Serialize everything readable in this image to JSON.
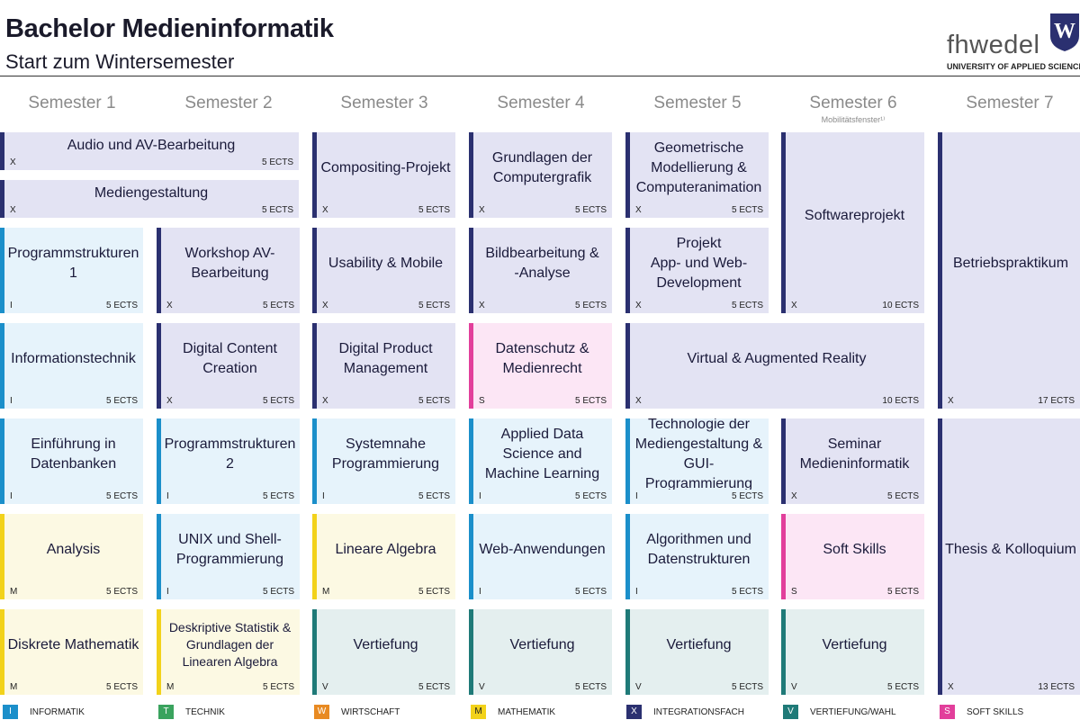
{
  "header": {
    "title": "Bachelor Medieninformatik",
    "subtitle": "Start zum Wintersemester",
    "logo_text": "fhwedel",
    "logo_letter": "W",
    "logo_sub": "UNIVERSITY OF APPLIED SCIENCES"
  },
  "semesters": [
    {
      "label": "Semester 1",
      "note": ""
    },
    {
      "label": "Semester 2",
      "note": ""
    },
    {
      "label": "Semester 3",
      "note": ""
    },
    {
      "label": "Semester 4",
      "note": ""
    },
    {
      "label": "Semester 5",
      "note": ""
    },
    {
      "label": "Semester 6",
      "note": "Mobilitätsfenster¹⁾"
    },
    {
      "label": "Semester 7",
      "note": ""
    }
  ],
  "colors": {
    "I": {
      "bar": "#1b8fca",
      "bg": "#e6f3fb"
    },
    "T": {
      "bar": "#3aa35e",
      "bg": "#e6f4ea"
    },
    "W": {
      "bar": "#e88a22",
      "bg": "#fdf0e2"
    },
    "M": {
      "bar": "#f2d21a",
      "bg": "#fcf9e3"
    },
    "X": {
      "bar": "#2b3070",
      "bg": "#e3e3f3"
    },
    "V": {
      "bar": "#1f7a78",
      "bg": "#e4efef"
    },
    "S": {
      "bar": "#e23f9b",
      "bg": "#fce6f5"
    }
  },
  "modules": [
    {
      "id": "audio-und-av-bearbeitung",
      "col": 0,
      "row": 0,
      "span": 0.5,
      "name": "Audio und AV-Bearbeitung",
      "cat": "X",
      "ects": "5 ECTS"
    },
    {
      "id": "mediengestaltung",
      "col": 0,
      "row": 0.5,
      "span": 0.5,
      "name": "Mediengestaltung",
      "cat": "X",
      "ects": "5 ECTS"
    },
    {
      "id": "programmstrukturen-1",
      "col": 0,
      "row": 1,
      "span": 1,
      "name": "Programmstrukturen\n1",
      "cat": "I",
      "ects": "5 ECTS"
    },
    {
      "id": "informationstechnik",
      "col": 0,
      "row": 2,
      "span": 1,
      "name": "Informationstechnik",
      "cat": "I",
      "ects": "5 ECTS"
    },
    {
      "id": "einfuehrung-in-datenbanken",
      "col": 0,
      "row": 3,
      "span": 1,
      "name": "Einführung in\nDatenbanken",
      "cat": "I",
      "ects": "5 ECTS"
    },
    {
      "id": "analysis",
      "col": 0,
      "row": 4,
      "span": 1,
      "name": "Analysis",
      "cat": "M",
      "ects": "5 ECTS"
    },
    {
      "id": "diskrete-mathematik",
      "col": 0,
      "row": 5,
      "span": 1,
      "name": "Diskrete Mathematik",
      "cat": "M",
      "ects": "5 ECTS"
    },
    {
      "id": "workshop-av-bearbeitung",
      "col": 1,
      "row": 1,
      "span": 1,
      "name": "Workshop AV-\nBearbeitung",
      "cat": "X",
      "ects": "5 ECTS"
    },
    {
      "id": "digital-content-creation",
      "col": 1,
      "row": 2,
      "span": 1,
      "name": "Digital Content\nCreation",
      "cat": "X",
      "ects": "5 ECTS"
    },
    {
      "id": "programmstrukturen-2",
      "col": 1,
      "row": 3,
      "span": 1,
      "name": "Programmstrukturen\n2",
      "cat": "I",
      "ects": "5 ECTS"
    },
    {
      "id": "unix-und-shell-programmierung",
      "col": 1,
      "row": 4,
      "span": 1,
      "name": "UNIX und Shell-\nProgrammierung",
      "cat": "I",
      "ects": "5 ECTS"
    },
    {
      "id": "deskriptive-statistik",
      "col": 1,
      "row": 5,
      "span": 1,
      "name": "Deskriptive Statistik &\nGrundlagen der\nLinearen Algebra",
      "cat": "M",
      "ects": "5 ECTS",
      "small": true
    },
    {
      "id": "compositing-projekt",
      "col": 2,
      "row": 0,
      "span": 1,
      "name": "Compositing-Projekt",
      "cat": "X",
      "ects": "5 ECTS"
    },
    {
      "id": "usability-und-mobile",
      "col": 2,
      "row": 1,
      "span": 1,
      "name": "Usability & Mobile",
      "cat": "X",
      "ects": "5 ECTS"
    },
    {
      "id": "digital-product-management",
      "col": 2,
      "row": 2,
      "span": 1,
      "name": "Digital Product\nManagement",
      "cat": "X",
      "ects": "5 ECTS"
    },
    {
      "id": "systemnahe-programmierung",
      "col": 2,
      "row": 3,
      "span": 1,
      "name": "Systemnahe\nProgrammierung",
      "cat": "I",
      "ects": "5 ECTS"
    },
    {
      "id": "lineare-algebra",
      "col": 2,
      "row": 4,
      "span": 1,
      "name": "Lineare Algebra",
      "cat": "M",
      "ects": "5 ECTS"
    },
    {
      "id": "vertiefung-3",
      "col": 2,
      "row": 5,
      "span": 1,
      "name": "Vertiefung",
      "cat": "V",
      "ects": "5 ECTS"
    },
    {
      "id": "grundlagen-der-computergrafik",
      "col": 3,
      "row": 0,
      "span": 1,
      "name": "Grundlagen der\nComputergrafik",
      "cat": "X",
      "ects": "5 ECTS"
    },
    {
      "id": "bildbearbeitung-und-analyse",
      "col": 3,
      "row": 1,
      "span": 1,
      "name": "Bildbearbeitung &\n-Analyse",
      "cat": "X",
      "ects": "5 ECTS"
    },
    {
      "id": "datenschutz-und-medienrecht",
      "col": 3,
      "row": 2,
      "span": 1,
      "name": "Datenschutz &\nMedienrecht",
      "cat": "S",
      "ects": "5 ECTS"
    },
    {
      "id": "applied-data-science",
      "col": 3,
      "row": 3,
      "span": 1,
      "name": "Applied Data\nScience and\nMachine Learning",
      "cat": "I",
      "ects": "5 ECTS"
    },
    {
      "id": "web-anwendungen",
      "col": 3,
      "row": 4,
      "span": 1,
      "name": "Web-Anwendungen",
      "cat": "I",
      "ects": "5 ECTS"
    },
    {
      "id": "vertiefung-4",
      "col": 3,
      "row": 5,
      "span": 1,
      "name": "Vertiefung",
      "cat": "V",
      "ects": "5 ECTS"
    },
    {
      "id": "geometrische-modellierung",
      "col": 4,
      "row": 0,
      "span": 1,
      "name": "Geometrische\nModellierung &\nComputeranimation",
      "cat": "X",
      "ects": "5 ECTS"
    },
    {
      "id": "projekt-app-und-web-development",
      "col": 4,
      "row": 1,
      "span": 1,
      "name": "Projekt\nApp- und Web-\nDevelopment",
      "cat": "X",
      "ects": "5 ECTS"
    },
    {
      "id": "virtual-und-augmented-reality",
      "col": 4,
      "row": 2,
      "span": 1,
      "wide": 2,
      "name": "Virtual & Augmented Reality",
      "cat": "X",
      "ects": "10 ECTS"
    },
    {
      "id": "technologie-der-mediengestaltung",
      "col": 4,
      "row": 3,
      "span": 1,
      "name": "Technologie der\nMediengestaltung &\nGUI-\nProgrammierung",
      "cat": "I",
      "ects": "5 ECTS"
    },
    {
      "id": "algorithmen-und-datenstrukturen",
      "col": 4,
      "row": 4,
      "span": 1,
      "name": "Algorithmen und\nDatenstrukturen",
      "cat": "I",
      "ects": "5 ECTS"
    },
    {
      "id": "vertiefung-5",
      "col": 4,
      "row": 5,
      "span": 1,
      "name": "Vertiefung",
      "cat": "V",
      "ects": "5 ECTS"
    },
    {
      "id": "softwareprojekt",
      "col": 5,
      "row": 0,
      "span": 2,
      "name": "Softwareprojekt",
      "cat": "X",
      "ects": "10 ECTS"
    },
    {
      "id": "seminar-medieninformatik",
      "col": 5,
      "row": 3,
      "span": 1,
      "name": "Seminar\nMedieninformatik",
      "cat": "X",
      "ects": "5 ECTS"
    },
    {
      "id": "soft-skills",
      "col": 5,
      "row": 4,
      "span": 1,
      "name": "Soft Skills",
      "cat": "S",
      "ects": "5 ECTS"
    },
    {
      "id": "vertiefung-6",
      "col": 5,
      "row": 5,
      "span": 1,
      "name": "Vertiefung",
      "cat": "V",
      "ects": "5 ECTS"
    },
    {
      "id": "betriebspraktikum",
      "col": 6,
      "row": 0,
      "span": 3,
      "name": "Betriebspraktikum",
      "cat": "X",
      "ects": "17 ECTS"
    },
    {
      "id": "thesis-und-kolloquium",
      "col": 6,
      "row": 3,
      "span": 3,
      "name": "Thesis & Kolloquium",
      "cat": "X",
      "ects": "13 ECTS"
    }
  ],
  "legend": [
    {
      "key": "I",
      "label": "INFORMATIK"
    },
    {
      "key": "T",
      "label": "TECHNIK"
    },
    {
      "key": "W",
      "label": "WIRTSCHAFT"
    },
    {
      "key": "M",
      "label": "MATHEMATIK"
    },
    {
      "key": "X",
      "label": "INTEGRATIONSFACH"
    },
    {
      "key": "V",
      "label": "VERTIEFUNG/WAHL"
    },
    {
      "key": "S",
      "label": "SOFT SKILLS"
    }
  ]
}
